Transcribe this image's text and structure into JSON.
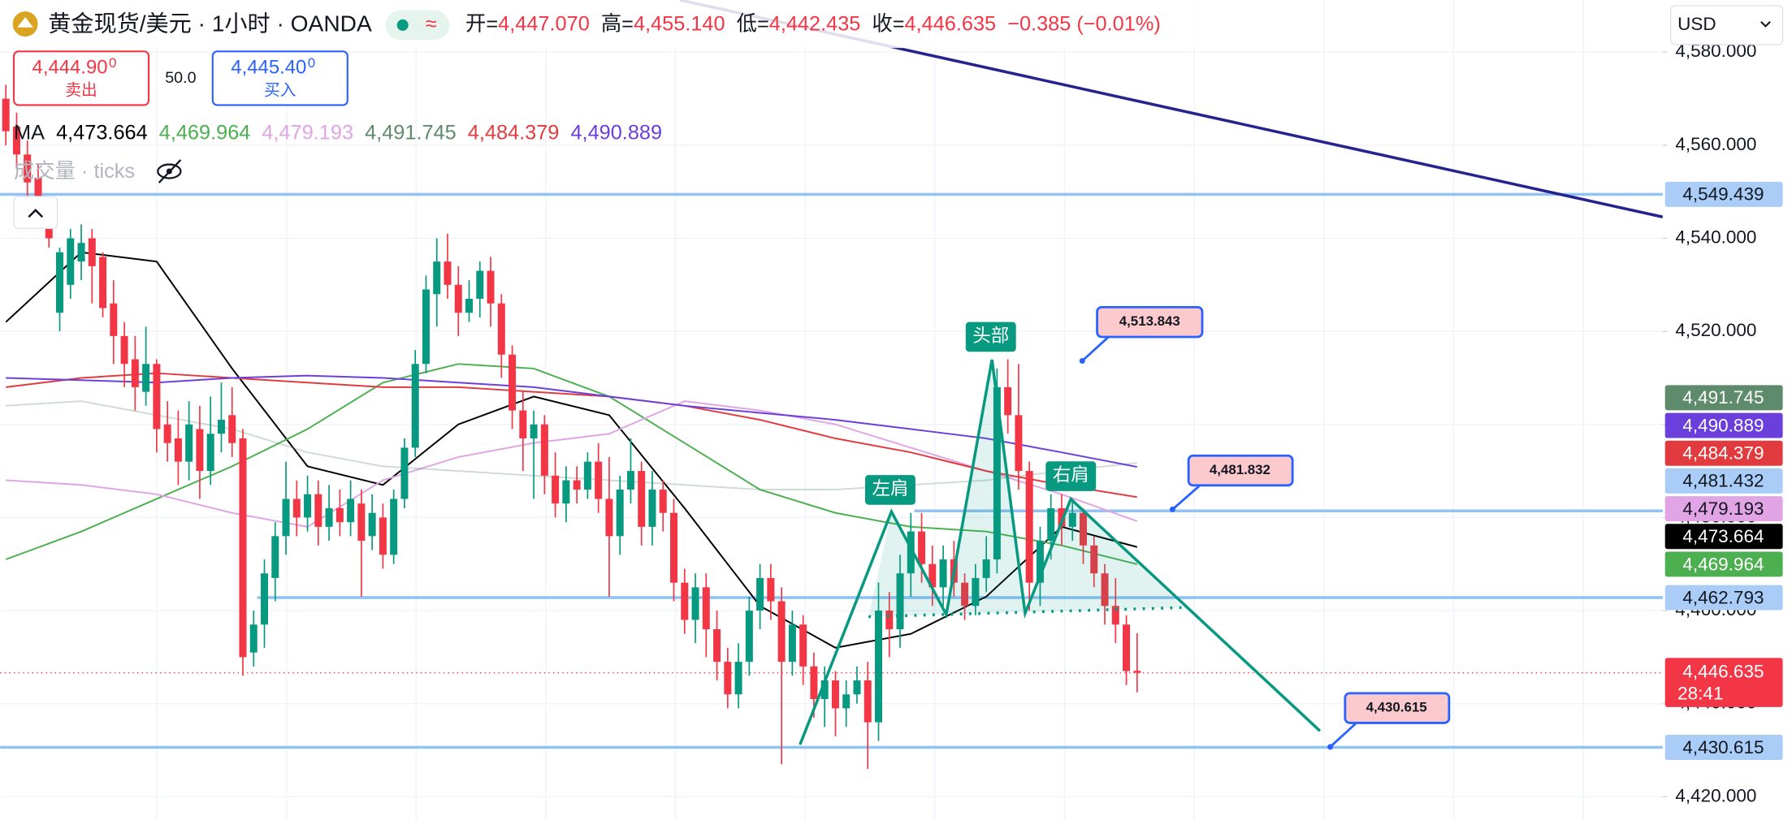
{
  "header": {
    "symbol": "黄金现货/美元 · 1小时 · OANDA",
    "status": "≈",
    "ohlc": [
      {
        "label": "开=",
        "value": "4,447.070"
      },
      {
        "label": "高=",
        "value": "4,455.140"
      },
      {
        "label": "低=",
        "value": "4,442.435"
      },
      {
        "label": "收=",
        "value": "4,446.635"
      }
    ],
    "change": "−0.385 (−0.01%)",
    "sell": {
      "price": "4,444.90",
      "sup": "0",
      "label": "卖出"
    },
    "spread": "50.0",
    "buy": {
      "price": "4,445.40",
      "sup": "0",
      "label": "买入"
    },
    "ma_label": "MA",
    "volume_label": "成交量 · ticks",
    "currency": "USD"
  },
  "chart_data": {
    "type": "candlestick",
    "up_color": "#089981",
    "down_color": "#f23645",
    "open": [
      4570,
      4564,
      4558,
      4553,
      4546,
      4524,
      4530,
      4535,
      4540,
      4536,
      4526,
      4519,
      4514,
      4507,
      4513,
      4500,
      4497,
      4492,
      4499,
      4490,
      4498,
      4502,
      4497,
      4451,
      4457,
      4467,
      4476,
      4484,
      4480,
      4485,
      4478,
      4482,
      4479,
      4483,
      4476,
      4480,
      4472,
      4484,
      4495,
      4513,
      4528,
      4535,
      4530,
      4524,
      4527,
      4533,
      4526,
      4515,
      4503,
      4497,
      4500,
      4489,
      4483,
      4488,
      4486,
      4492,
      4484,
      4476,
      4486,
      4490,
      4478,
      4486,
      4481,
      4466,
      4458,
      4465,
      4456,
      4449,
      4442,
      4449,
      4460,
      4467,
      4462,
      4449,
      4457,
      4448,
      4441,
      4445,
      4439,
      4442,
      4445,
      4436,
      4460,
      4456,
      4468,
      4477,
      4470,
      4465,
      4471,
      4466,
      4461,
      4467,
      4471,
      4508,
      4502,
      4490,
      4466,
      4475,
      4482,
      4478,
      4481,
      4474,
      4468,
      4461,
      4457,
      4447.07
    ],
    "high": [
      4573,
      4567,
      4561,
      4556,
      4549,
      4538,
      4542,
      4543,
      4542,
      4537,
      4531,
      4522,
      4519,
      4521,
      4514,
      4505,
      4503,
      4505,
      4504,
      4506,
      4509,
      4508,
      4499,
      4460,
      4471,
      4479,
      4492,
      4488,
      4489,
      4488,
      4487,
      4486,
      4488,
      4486,
      4485,
      4483,
      4486,
      4497,
      4516,
      4532,
      4540,
      4541,
      4534,
      4531,
      4535,
      4536,
      4528,
      4517,
      4507,
      4503,
      4502,
      4494,
      4491,
      4491,
      4494,
      4496,
      4493,
      4489,
      4497,
      4492,
      4490,
      4488,
      4484,
      4469,
      4468,
      4468,
      4460,
      4452,
      4453,
      4463,
      4470,
      4470,
      4465,
      4460,
      4459,
      4451,
      4448,
      4447,
      4445,
      4448,
      4449,
      4466,
      4464,
      4472,
      4481,
      4481,
      4474,
      4474,
      4475,
      4468,
      4470,
      4476,
      4512,
      4514,
      4513,
      4492,
      4478,
      4485,
      4485,
      4484,
      4482,
      4476,
      4470,
      4467,
      4459,
      4455.14
    ],
    "low": [
      4560,
      4555,
      4549,
      4542,
      4538,
      4520,
      4527,
      4531,
      4526,
      4523,
      4513,
      4508,
      4503,
      4504,
      4494,
      4492,
      4487,
      4488,
      4484,
      4487,
      4494,
      4493,
      4446,
      4448,
      4452,
      4462,
      4472,
      4476,
      4477,
      4474,
      4475,
      4476,
      4476,
      4463,
      4473,
      4469,
      4470,
      4482,
      4493,
      4511,
      4521,
      4527,
      4519,
      4522,
      4523,
      4521,
      4510,
      4499,
      4490,
      4484,
      4485,
      4480,
      4479,
      4483,
      4484,
      4481,
      4463,
      4472,
      4483,
      4474,
      4474,
      4477,
      4462,
      4455,
      4453,
      4450,
      4445,
      4439,
      4439,
      4446,
      4456,
      4458,
      4427,
      4446,
      4444,
      4437,
      4435,
      4433,
      4435,
      4440,
      4426,
      4432,
      4450,
      4452,
      4463,
      4466,
      4461,
      4461,
      4463,
      4458,
      4459,
      4464,
      4468,
      4498,
      4486,
      4460,
      4461,
      4471,
      4474,
      4475,
      4470,
      4465,
      4457,
      4453,
      4444,
      4442.435
    ],
    "close": [
      4563,
      4558,
      4552,
      4545,
      4540,
      4537,
      4540,
      4539,
      4534,
      4525,
      4519,
      4513,
      4508,
      4513,
      4499,
      4496,
      4492,
      4500,
      4490,
      4498,
      4501,
      4496,
      4450,
      4457,
      4468,
      4476,
      4484,
      4480,
      4485,
      4478,
      4482,
      4479,
      4484,
      4475,
      4481,
      4472,
      4484,
      4495,
      4513,
      4529,
      4535,
      4530,
      4524,
      4527,
      4533,
      4526,
      4515,
      4503,
      4497,
      4500,
      4489,
      4483,
      4488,
      4486,
      4492,
      4484,
      4476,
      4486,
      4490,
      4478,
      4486,
      4481,
      4466,
      4458,
      4465,
      4456,
      4449,
      4442,
      4449,
      4460,
      4467,
      4462,
      4449,
      4457,
      4448,
      4441,
      4445,
      4439,
      4442,
      4445,
      4436,
      4460,
      4456,
      4468,
      4477,
      4470,
      4465,
      4471,
      4466,
      4461,
      4467,
      4471,
      4508,
      4502,
      4490,
      4466,
      4475,
      4482,
      4478,
      4481,
      4474,
      4468,
      4461,
      4457,
      4447,
      4446.635
    ],
    "ma": [
      {
        "color": "#000000",
        "label": "4,473.664",
        "values": [
          4522,
          4537,
          4535,
          4512,
          4491,
          4487,
          4500,
          4506,
          4502,
          4482,
          4461,
          4452,
          4455,
          4463,
          4478,
          4473.664
        ]
      },
      {
        "color": "#4caf50",
        "label": "4,469.964",
        "values": [
          4471,
          4477,
          4484,
          4491,
          4499,
          4509,
          4513,
          4512,
          4506,
          4496,
          4486,
          4481,
          4478,
          4477,
          4474,
          4469.964
        ]
      },
      {
        "color": "#e1a5e6",
        "label": "4,479.193",
        "values": [
          4488,
          4487,
          4485,
          4481,
          4478,
          4488,
          4493,
          4496,
          4498,
          4505,
          4503,
          4500,
          4495,
          4490,
          4485,
          4479.193
        ]
      },
      {
        "color": "#5d8b6c",
        "label": "4,491.745",
        "values": [
          4504,
          4505,
          4502,
          4499,
          4494,
          4491,
          4490,
          4489,
          4488,
          4487,
          4486,
          4486,
          4487,
          4488,
          4490,
          4491.745
        ]
      },
      {
        "color": "#e23b3f",
        "label": "4,484.379",
        "values": [
          4508,
          4510,
          4511,
          4510,
          4509,
          4508,
          4508,
          4507,
          4506,
          4504,
          4501,
          4497,
          4494,
          4490,
          4487,
          4484.379
        ]
      },
      {
        "color": "#6b3fdc",
        "label": "4,490.889",
        "values": [
          4510,
          4509.5,
          4509,
          4510,
          4510.5,
          4510,
          4509,
          4508,
          4506,
          4504,
          4502.5,
          4501,
          4499,
          4497,
          4494,
          4490.889
        ]
      }
    ],
    "levels": [
      {
        "value": 4549.439,
        "label": "4,549.439"
      },
      {
        "value": 4481.432,
        "label": "4,481.432"
      },
      {
        "value": 4462.793,
        "label": "4,462.793"
      },
      {
        "value": 4430.615,
        "label": "4,430.615"
      }
    ],
    "level_color": "#90c2f5",
    "last": {
      "value": 4446.635,
      "label": "4,446.635",
      "countdown": "28:41"
    },
    "ylim": [
      4415.2,
      4591.2
    ],
    "yticks": [
      {
        "value": 4420,
        "label": "4,420.000"
      },
      {
        "value": 4440,
        "label": "4,440.000"
      },
      {
        "value": 4460,
        "label": "4,460.000"
      },
      {
        "value": 4480,
        "label": "4,480.000"
      },
      {
        "value": 4500,
        "label": "4,500.000"
      },
      {
        "value": 4520,
        "label": "4,520.000"
      },
      {
        "value": 4540,
        "label": "4,540.000"
      },
      {
        "value": 4560,
        "label": "4,560.000"
      },
      {
        "value": 4580,
        "label": "4,580.000"
      }
    ],
    "grid": true
  },
  "annotations": {
    "left_shoulder": "左肩",
    "head": "头部",
    "right_shoulder": "右肩",
    "callouts": [
      "4,513.843",
      "4,481.832",
      "4,430.615"
    ]
  }
}
